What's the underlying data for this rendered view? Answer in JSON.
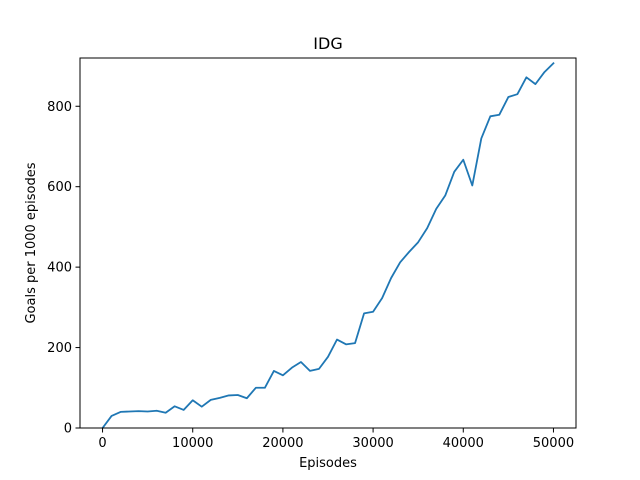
{
  "chart_data": {
    "type": "line",
    "title": "IDG",
    "xlabel": "Episodes",
    "ylabel": "Goals per 1000 episodes",
    "xlim": [
      -2500,
      52500
    ],
    "ylim": [
      0,
      920
    ],
    "xticks": [
      0,
      10000,
      20000,
      30000,
      40000,
      50000
    ],
    "yticks": [
      0,
      200,
      400,
      600,
      800
    ],
    "grid": false,
    "series": [
      {
        "color": "#1f77b4",
        "x": [
          0,
          1000,
          2000,
          3000,
          4000,
          5000,
          6000,
          7000,
          8000,
          9000,
          10000,
          11000,
          12000,
          13000,
          14000,
          15000,
          16000,
          17000,
          18000,
          19000,
          20000,
          21000,
          22000,
          23000,
          24000,
          25000,
          26000,
          27000,
          28000,
          29000,
          30000,
          31000,
          32000,
          33000,
          34000,
          35000,
          36000,
          37000,
          38000,
          39000,
          40000,
          41000,
          42000,
          43000,
          44000,
          45000,
          46000,
          47000,
          48000,
          49000,
          50000
        ],
        "y": [
          0,
          30,
          40,
          41,
          42,
          41,
          43,
          38,
          54,
          45,
          69,
          53,
          70,
          75,
          81,
          82,
          74,
          100,
          100,
          142,
          131,
          150,
          164,
          142,
          147,
          177,
          220,
          208,
          211,
          285,
          289,
          323,
          373,
          412,
          438,
          462,
          497,
          545,
          578,
          637,
          667,
          603,
          720,
          775,
          779,
          823,
          830,
          872,
          855,
          885,
          907
        ]
      }
    ]
  }
}
